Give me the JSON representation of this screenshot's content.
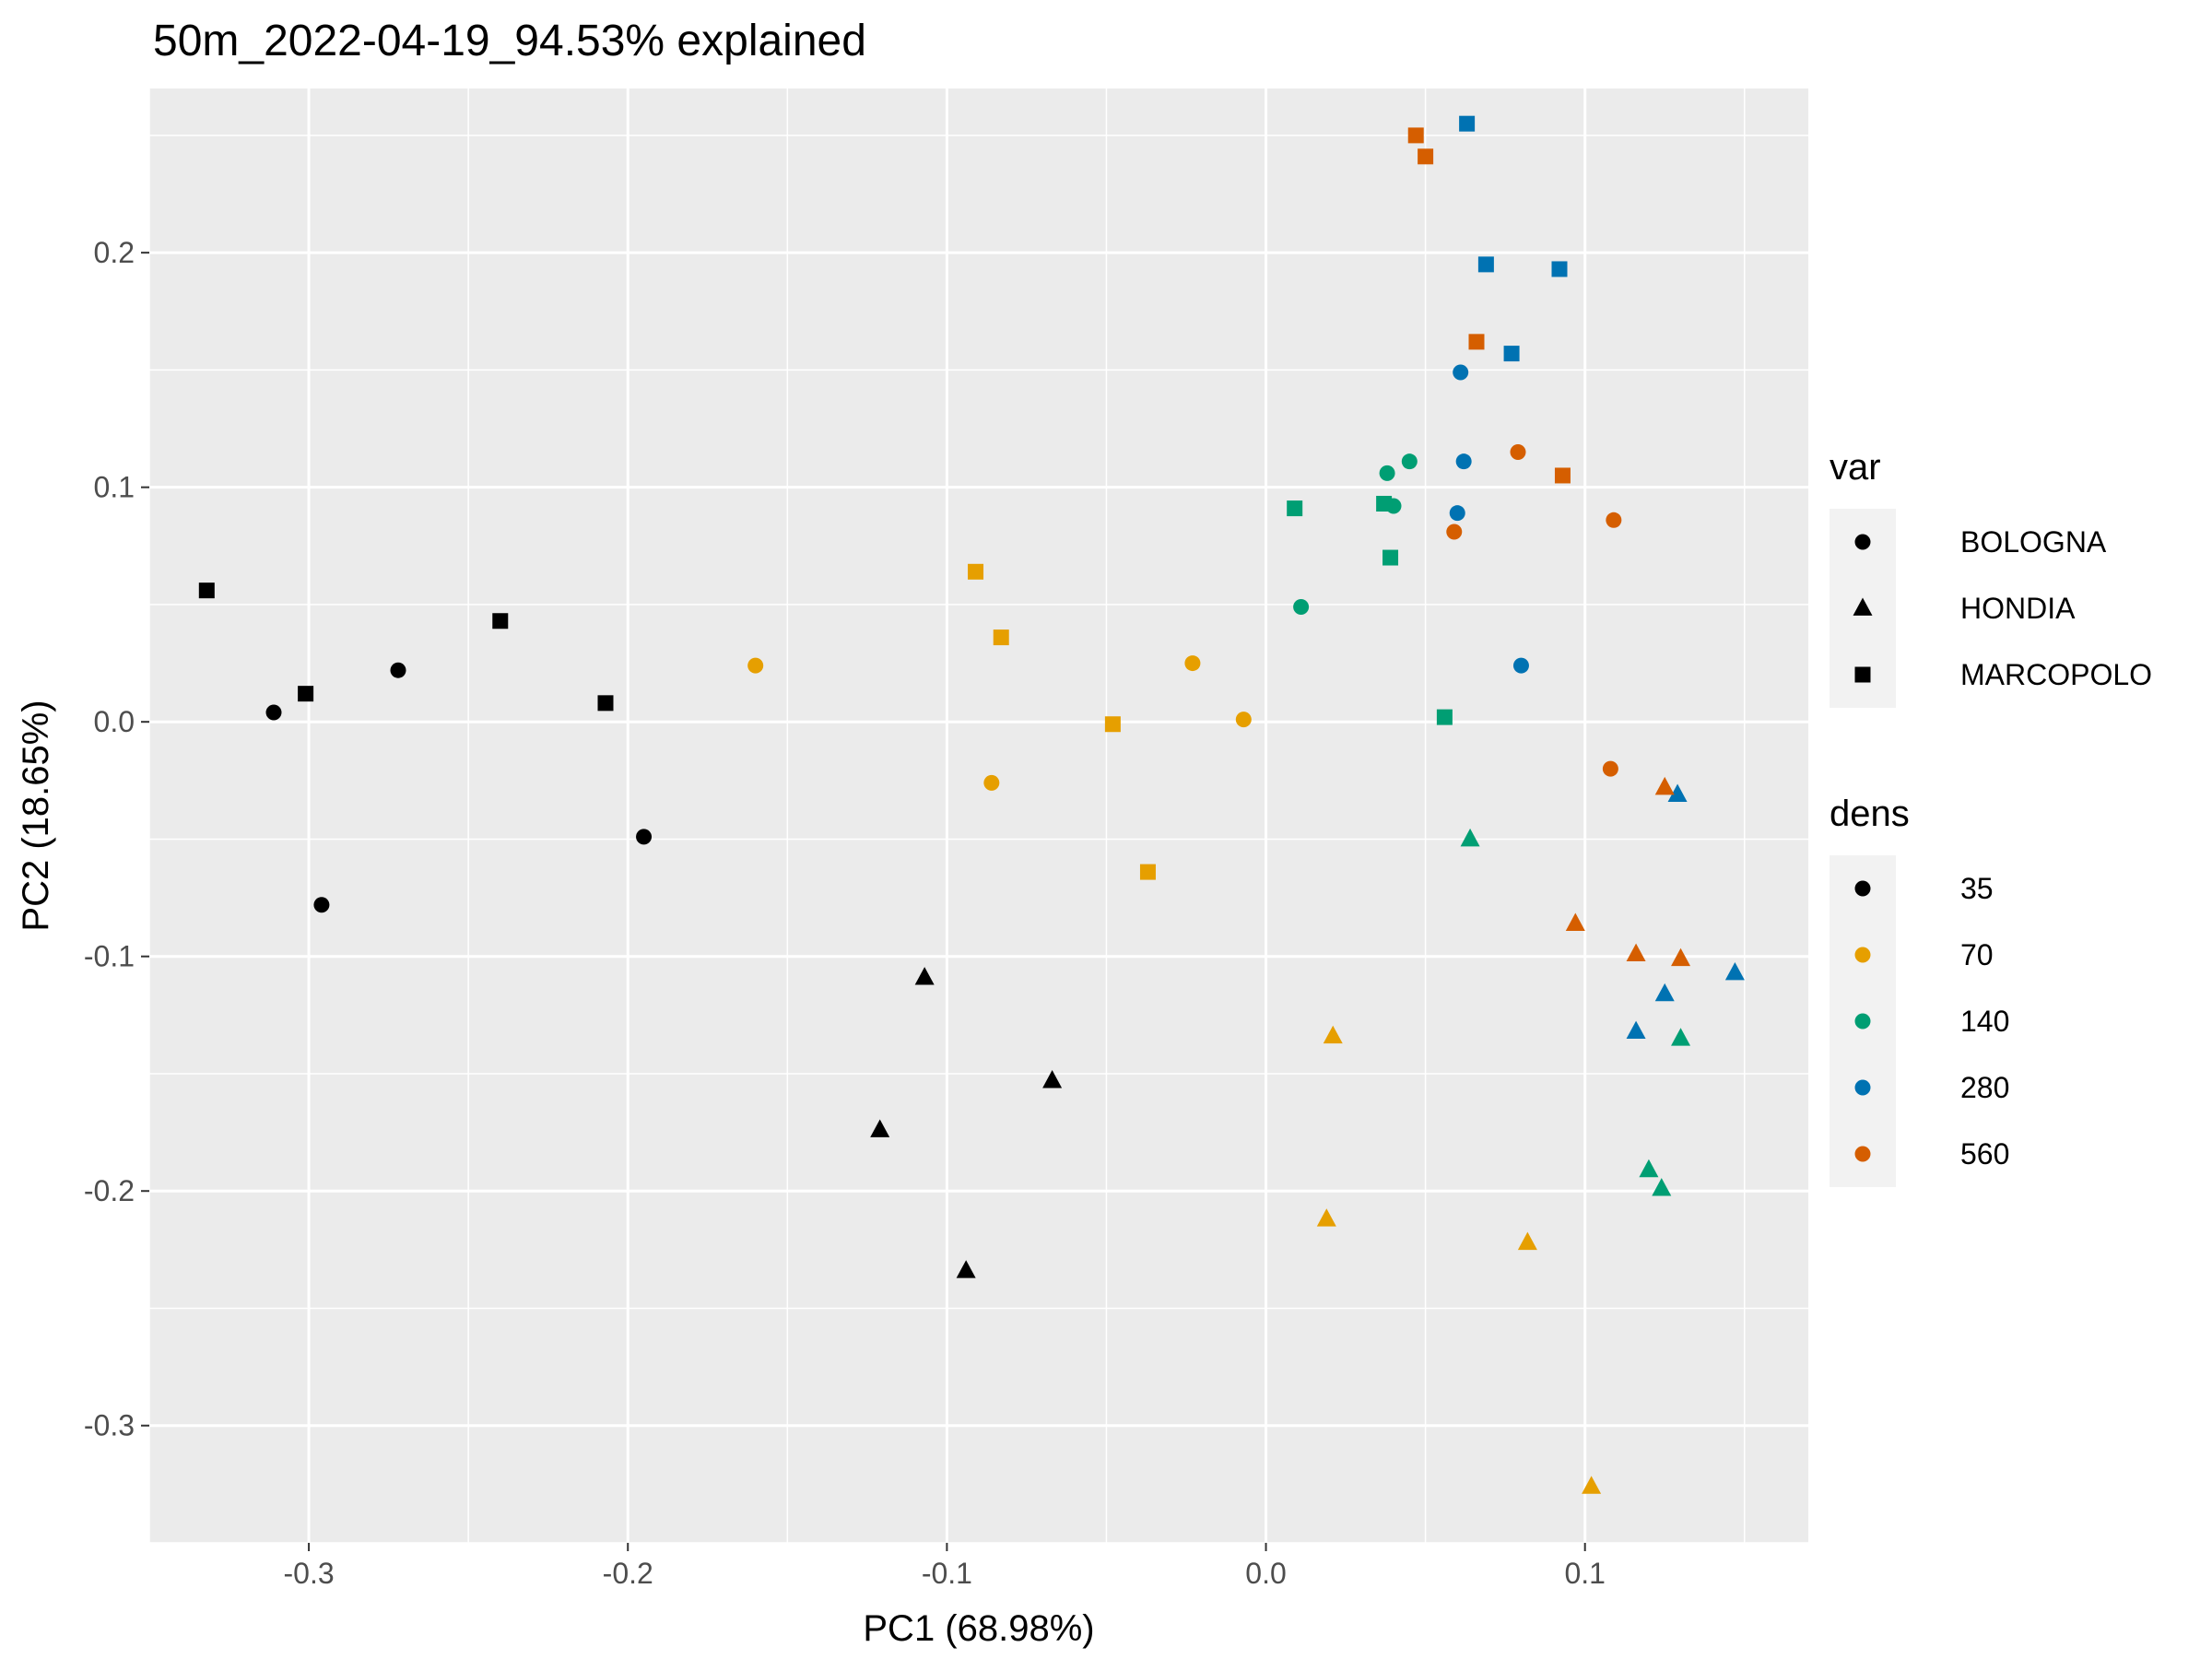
{
  "chart_data": {
    "type": "scatter",
    "title": "50m_2022-04-19_94.53% explained",
    "xlabel": "PC1 (68.98%)",
    "ylabel": "PC2 (18.65%)",
    "xlim": [
      -0.35,
      0.17
    ],
    "ylim": [
      -0.35,
      0.27
    ],
    "x_ticks": [
      {
        "value": -0.3,
        "label": "-0.3"
      },
      {
        "value": -0.2,
        "label": "-0.2"
      },
      {
        "value": -0.1,
        "label": "-0.1"
      },
      {
        "value": 0.0,
        "label": "0.0"
      },
      {
        "value": 0.1,
        "label": "0.1"
      }
    ],
    "y_ticks": [
      {
        "value": -0.3,
        "label": "-0.3"
      },
      {
        "value": -0.2,
        "label": "-0.2"
      },
      {
        "value": -0.1,
        "label": "-0.1"
      },
      {
        "value": 0.0,
        "label": "0.0"
      },
      {
        "value": 0.1,
        "label": "0.1"
      },
      {
        "value": 0.2,
        "label": "0.2"
      }
    ],
    "grid": true,
    "legend_position": "right",
    "legend_shape": {
      "title": "var",
      "items": [
        {
          "label": "BOLOGNA",
          "shape": "circle"
        },
        {
          "label": "HONDIA",
          "shape": "triangle"
        },
        {
          "label": "MARCOPOLO",
          "shape": "square"
        }
      ]
    },
    "legend_color": {
      "title": "dens",
      "items": [
        {
          "label": "35",
          "color": "#000000"
        },
        {
          "label": "70",
          "color": "#E69F00"
        },
        {
          "label": "140",
          "color": "#009E73"
        },
        {
          "label": "280",
          "color": "#0072B2"
        },
        {
          "label": "560",
          "color": "#D55E00"
        }
      ]
    },
    "points": [
      {
        "x": -0.311,
        "y": 0.004,
        "var": "BOLOGNA",
        "dens": "35"
      },
      {
        "x": -0.296,
        "y": -0.078,
        "var": "BOLOGNA",
        "dens": "35"
      },
      {
        "x": -0.272,
        "y": 0.022,
        "var": "BOLOGNA",
        "dens": "35"
      },
      {
        "x": -0.195,
        "y": -0.049,
        "var": "BOLOGNA",
        "dens": "35"
      },
      {
        "x": -0.107,
        "y": -0.109,
        "var": "HONDIA",
        "dens": "35"
      },
      {
        "x": -0.121,
        "y": -0.174,
        "var": "HONDIA",
        "dens": "35"
      },
      {
        "x": -0.067,
        "y": -0.153,
        "var": "HONDIA",
        "dens": "35"
      },
      {
        "x": -0.094,
        "y": -0.234,
        "var": "HONDIA",
        "dens": "35"
      },
      {
        "x": -0.332,
        "y": 0.056,
        "var": "MARCOPOLO",
        "dens": "35"
      },
      {
        "x": -0.301,
        "y": 0.012,
        "var": "MARCOPOLO",
        "dens": "35"
      },
      {
        "x": -0.24,
        "y": 0.043,
        "var": "MARCOPOLO",
        "dens": "35"
      },
      {
        "x": -0.207,
        "y": 0.008,
        "var": "MARCOPOLO",
        "dens": "35"
      },
      {
        "x": -0.16,
        "y": 0.024,
        "var": "BOLOGNA",
        "dens": "70"
      },
      {
        "x": -0.086,
        "y": -0.026,
        "var": "BOLOGNA",
        "dens": "70"
      },
      {
        "x": -0.023,
        "y": 0.025,
        "var": "BOLOGNA",
        "dens": "70"
      },
      {
        "x": -0.007,
        "y": 0.001,
        "var": "BOLOGNA",
        "dens": "70"
      },
      {
        "x": 0.021,
        "y": -0.134,
        "var": "HONDIA",
        "dens": "70"
      },
      {
        "x": 0.019,
        "y": -0.212,
        "var": "HONDIA",
        "dens": "70"
      },
      {
        "x": 0.082,
        "y": -0.222,
        "var": "HONDIA",
        "dens": "70"
      },
      {
        "x": 0.102,
        "y": -0.326,
        "var": "HONDIA",
        "dens": "70"
      },
      {
        "x": -0.091,
        "y": 0.064,
        "var": "MARCOPOLO",
        "dens": "70"
      },
      {
        "x": -0.083,
        "y": 0.036,
        "var": "MARCOPOLO",
        "dens": "70"
      },
      {
        "x": -0.048,
        "y": -0.001,
        "var": "MARCOPOLO",
        "dens": "70"
      },
      {
        "x": -0.037,
        "y": -0.064,
        "var": "MARCOPOLO",
        "dens": "70"
      },
      {
        "x": 0.011,
        "y": 0.049,
        "var": "BOLOGNA",
        "dens": "140"
      },
      {
        "x": 0.038,
        "y": 0.106,
        "var": "BOLOGNA",
        "dens": "140"
      },
      {
        "x": 0.04,
        "y": 0.092,
        "var": "BOLOGNA",
        "dens": "140"
      },
      {
        "x": 0.045,
        "y": 0.111,
        "var": "BOLOGNA",
        "dens": "140"
      },
      {
        "x": 0.064,
        "y": -0.05,
        "var": "HONDIA",
        "dens": "140"
      },
      {
        "x": 0.13,
        "y": -0.135,
        "var": "HONDIA",
        "dens": "140"
      },
      {
        "x": 0.12,
        "y": -0.191,
        "var": "HONDIA",
        "dens": "140"
      },
      {
        "x": 0.124,
        "y": -0.199,
        "var": "HONDIA",
        "dens": "140"
      },
      {
        "x": 0.009,
        "y": 0.091,
        "var": "MARCOPOLO",
        "dens": "140"
      },
      {
        "x": 0.037,
        "y": 0.093,
        "var": "MARCOPOLO",
        "dens": "140"
      },
      {
        "x": 0.039,
        "y": 0.07,
        "var": "MARCOPOLO",
        "dens": "140"
      },
      {
        "x": 0.056,
        "y": 0.002,
        "var": "MARCOPOLO",
        "dens": "140"
      },
      {
        "x": 0.061,
        "y": 0.149,
        "var": "BOLOGNA",
        "dens": "280"
      },
      {
        "x": 0.062,
        "y": 0.111,
        "var": "BOLOGNA",
        "dens": "280"
      },
      {
        "x": 0.06,
        "y": 0.089,
        "var": "BOLOGNA",
        "dens": "280"
      },
      {
        "x": 0.08,
        "y": 0.024,
        "var": "BOLOGNA",
        "dens": "280"
      },
      {
        "x": 0.129,
        "y": -0.031,
        "var": "HONDIA",
        "dens": "280"
      },
      {
        "x": 0.147,
        "y": -0.107,
        "var": "HONDIA",
        "dens": "280"
      },
      {
        "x": 0.125,
        "y": -0.116,
        "var": "HONDIA",
        "dens": "280"
      },
      {
        "x": 0.116,
        "y": -0.132,
        "var": "HONDIA",
        "dens": "280"
      },
      {
        "x": 0.063,
        "y": 0.255,
        "var": "MARCOPOLO",
        "dens": "280"
      },
      {
        "x": 0.069,
        "y": 0.195,
        "var": "MARCOPOLO",
        "dens": "280"
      },
      {
        "x": 0.092,
        "y": 0.193,
        "var": "MARCOPOLO",
        "dens": "280"
      },
      {
        "x": 0.077,
        "y": 0.157,
        "var": "MARCOPOLO",
        "dens": "280"
      },
      {
        "x": 0.079,
        "y": 0.115,
        "var": "BOLOGNA",
        "dens": "560"
      },
      {
        "x": 0.109,
        "y": 0.086,
        "var": "BOLOGNA",
        "dens": "560"
      },
      {
        "x": 0.059,
        "y": 0.081,
        "var": "BOLOGNA",
        "dens": "560"
      },
      {
        "x": 0.108,
        "y": -0.02,
        "var": "BOLOGNA",
        "dens": "560"
      },
      {
        "x": 0.125,
        "y": -0.028,
        "var": "HONDIA",
        "dens": "560"
      },
      {
        "x": 0.097,
        "y": -0.086,
        "var": "HONDIA",
        "dens": "560"
      },
      {
        "x": 0.116,
        "y": -0.099,
        "var": "HONDIA",
        "dens": "560"
      },
      {
        "x": 0.13,
        "y": -0.101,
        "var": "HONDIA",
        "dens": "560"
      },
      {
        "x": 0.047,
        "y": 0.25,
        "var": "MARCOPOLO",
        "dens": "560"
      },
      {
        "x": 0.05,
        "y": 0.241,
        "var": "MARCOPOLO",
        "dens": "560"
      },
      {
        "x": 0.066,
        "y": 0.162,
        "var": "MARCOPOLO",
        "dens": "560"
      },
      {
        "x": 0.093,
        "y": 0.105,
        "var": "MARCOPOLO",
        "dens": "560"
      }
    ]
  }
}
